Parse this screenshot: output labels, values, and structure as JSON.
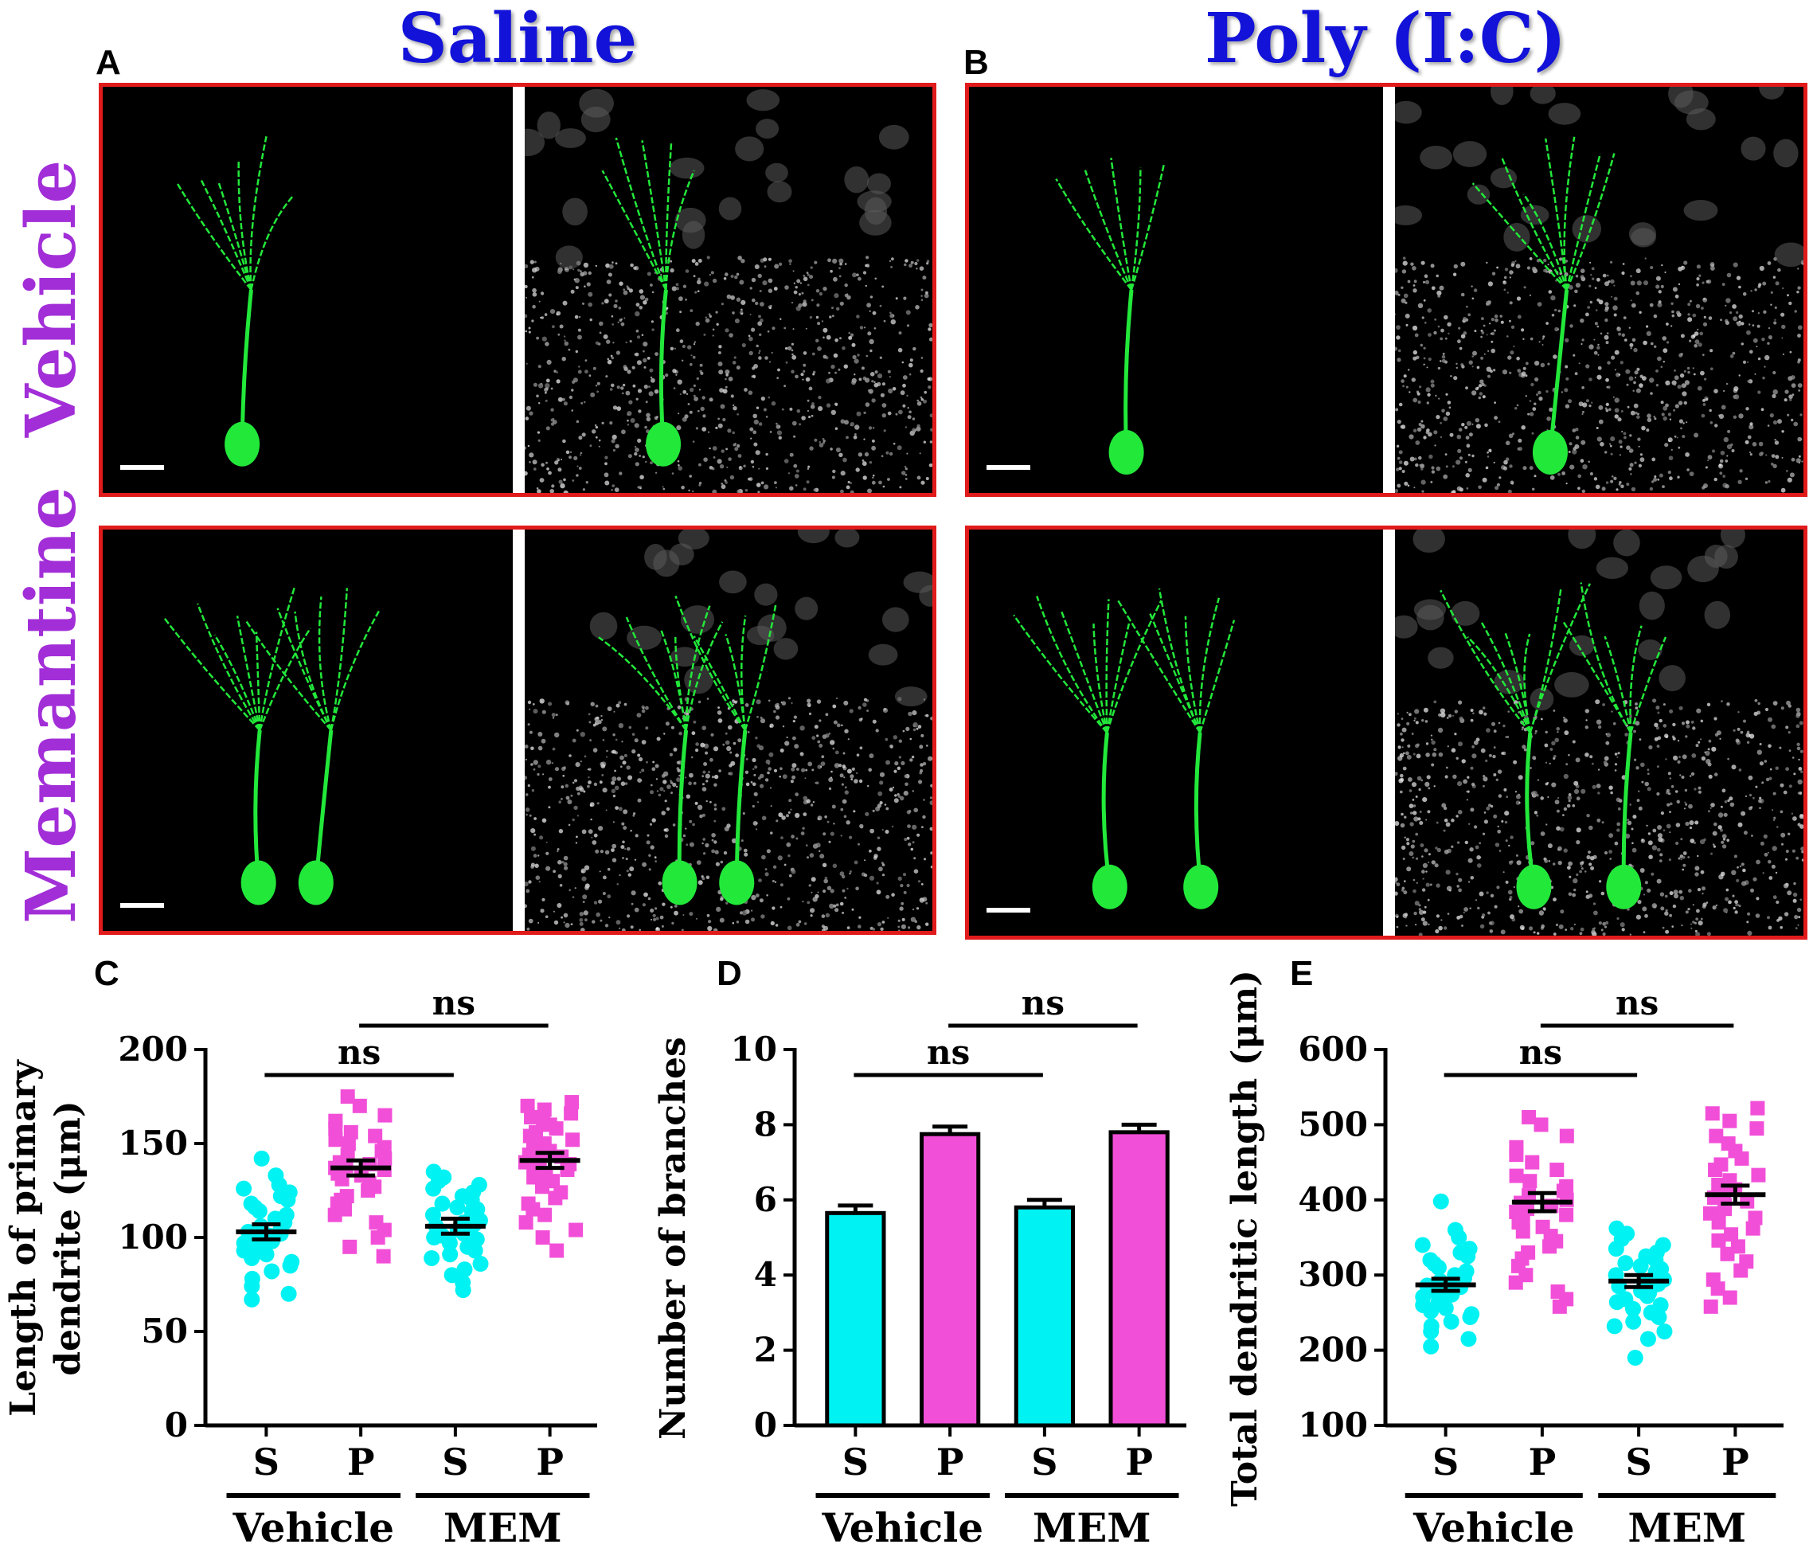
{
  "figure": {
    "column_titles": [
      "Saline",
      "Poly (I:C)"
    ],
    "row_titles": [
      "Vehicle",
      "Memantine"
    ],
    "panel_letters": {
      "A": "A",
      "B": "B",
      "C": "C",
      "D": "D",
      "E": "E"
    },
    "colors": {
      "column_title": "#1212d9",
      "row_title": "#a22ed8",
      "frame": "#e11b1b",
      "neuron": "#22e83a",
      "saline_group": "#00f2f2",
      "polyic_group": "#f24fd8"
    },
    "micrographs": [
      {
        "row": "Vehicle",
        "column": "Saline",
        "channels": [
          "neuron-green",
          "nuclei-merge"
        ]
      },
      {
        "row": "Vehicle",
        "column": "Poly (I:C)",
        "channels": [
          "neuron-green",
          "nuclei-merge"
        ]
      },
      {
        "row": "Memantine",
        "column": "Saline",
        "channels": [
          "neuron-green",
          "nuclei-merge"
        ]
      },
      {
        "row": "Memantine",
        "column": "Poly (I:C)",
        "channels": [
          "neuron-green",
          "nuclei-merge"
        ]
      }
    ]
  },
  "chart_data": [
    {
      "panel": "C",
      "type": "scatter",
      "ylabel_lines": [
        "Length of primary",
        "dendrite (μm)"
      ],
      "ylim": [
        0,
        200
      ],
      "yticks": [
        0,
        50,
        100,
        150,
        200
      ],
      "categories": [
        "S",
        "P",
        "S",
        "P"
      ],
      "groups": [
        "Vehicle",
        "MEM"
      ],
      "significance": [
        {
          "from": 0,
          "to": 2,
          "label": "ns"
        },
        {
          "from": 1,
          "to": 3,
          "label": "ns"
        }
      ],
      "series": [
        {
          "mean": 103,
          "sem": 4,
          "marker": "circle",
          "color": "#00f2f2",
          "points": [
            142,
            133,
            128,
            126,
            124,
            122,
            120,
            118,
            116,
            114,
            112,
            110,
            108,
            106,
            105,
            104,
            103,
            102,
            101,
            100,
            99,
            98,
            97,
            96,
            95,
            93,
            91,
            89,
            87,
            85,
            82,
            78,
            74,
            70,
            67
          ]
        },
        {
          "mean": 137,
          "sem": 4,
          "marker": "square",
          "color": "#f24fd8",
          "points": [
            175,
            170,
            165,
            162,
            158,
            156,
            154,
            152,
            150,
            148,
            146,
            144,
            142,
            140,
            139,
            138,
            137,
            136,
            135,
            134,
            133,
            131,
            129,
            127,
            125,
            122,
            120,
            118,
            115,
            112,
            108,
            104,
            100,
            95,
            90
          ]
        },
        {
          "mean": 106,
          "sem": 4,
          "marker": "circle",
          "color": "#00f2f2",
          "points": [
            135,
            132,
            130,
            128,
            126,
            124,
            122,
            120,
            118,
            116,
            115,
            114,
            112,
            110,
            109,
            108,
            107,
            106,
            105,
            104,
            103,
            102,
            101,
            100,
            99,
            97,
            95,
            93,
            91,
            89,
            86,
            83,
            80,
            76,
            72
          ]
        },
        {
          "mean": 141,
          "sem": 4,
          "marker": "square",
          "color": "#f24fd8",
          "points": [
            172,
            170,
            168,
            166,
            164,
            162,
            160,
            158,
            156,
            154,
            152,
            150,
            148,
            146,
            145,
            144,
            143,
            142,
            141,
            140,
            139,
            138,
            136,
            134,
            132,
            130,
            127,
            124,
            121,
            118,
            115,
            112,
            108,
            104,
            100,
            93
          ]
        }
      ]
    },
    {
      "panel": "D",
      "type": "bar",
      "ylabel_lines": [
        "Number of branches"
      ],
      "ylim": [
        0,
        10
      ],
      "yticks": [
        0,
        2,
        4,
        6,
        8,
        10
      ],
      "categories": [
        "S",
        "P",
        "S",
        "P"
      ],
      "groups": [
        "Vehicle",
        "MEM"
      ],
      "significance": [
        {
          "from": 0,
          "to": 2,
          "label": "ns"
        },
        {
          "from": 1,
          "to": 3,
          "label": "ns"
        }
      ],
      "series": [
        {
          "value": 5.65,
          "sem": 0.2,
          "color": "#00f2f2"
        },
        {
          "value": 7.75,
          "sem": 0.2,
          "color": "#f24fd8"
        },
        {
          "value": 5.8,
          "sem": 0.2,
          "color": "#00f2f2"
        },
        {
          "value": 7.8,
          "sem": 0.2,
          "color": "#f24fd8"
        }
      ]
    },
    {
      "panel": "E",
      "type": "scatter",
      "ylabel_lines": [
        "Total dendritic length (μm)"
      ],
      "ylim": [
        100,
        600
      ],
      "yticks": [
        100,
        200,
        300,
        400,
        500,
        600
      ],
      "categories": [
        "S",
        "P",
        "S",
        "P"
      ],
      "groups": [
        "Vehicle",
        "MEM"
      ],
      "significance": [
        {
          "from": 0,
          "to": 2,
          "label": "ns"
        },
        {
          "from": 1,
          "to": 3,
          "label": "ns"
        }
      ],
      "series": [
        {
          "mean": 287,
          "sem": 8,
          "marker": "circle",
          "color": "#00f2f2",
          "points": [
            398,
            360,
            350,
            340,
            335,
            330,
            325,
            320,
            315,
            310,
            305,
            300,
            296,
            292,
            290,
            288,
            286,
            284,
            282,
            280,
            277,
            274,
            271,
            268,
            264,
            260,
            256,
            252,
            248,
            244,
            238,
            232,
            225,
            215,
            205
          ]
        },
        {
          "mean": 397,
          "sem": 12,
          "marker": "square",
          "color": "#f24fd8",
          "points": [
            510,
            500,
            485,
            470,
            460,
            450,
            440,
            432,
            425,
            418,
            412,
            406,
            400,
            396,
            392,
            388,
            384,
            380,
            375,
            370,
            364,
            358,
            352,
            345,
            338,
            330,
            322,
            312,
            300,
            290,
            278,
            268,
            258
          ]
        },
        {
          "mean": 292,
          "sem": 8,
          "marker": "circle",
          "color": "#00f2f2",
          "points": [
            362,
            355,
            348,
            340,
            335,
            330,
            325,
            320,
            316,
            312,
            308,
            304,
            300,
            297,
            294,
            291,
            288,
            285,
            282,
            279,
            276,
            272,
            268,
            264,
            260,
            255,
            250,
            244,
            238,
            232,
            225,
            215,
            190
          ]
        },
        {
          "mean": 407,
          "sem": 12,
          "marker": "square",
          "color": "#f24fd8",
          "points": [
            522,
            515,
            505,
            495,
            485,
            475,
            465,
            455,
            447,
            440,
            433,
            426,
            420,
            414,
            408,
            403,
            398,
            393,
            388,
            382,
            376,
            370,
            362,
            354,
            346,
            338,
            328,
            318,
            306,
            294,
            282,
            270,
            258
          ]
        }
      ]
    }
  ]
}
